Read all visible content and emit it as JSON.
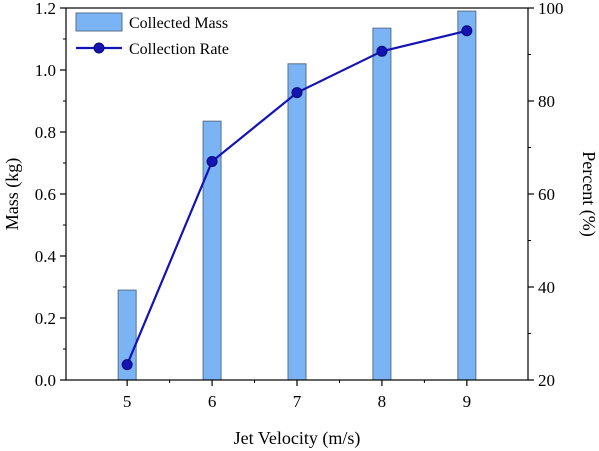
{
  "chart_data": {
    "type": "bar",
    "x": [
      5,
      6,
      7,
      8,
      9
    ],
    "categories": [
      "5",
      "6",
      "7",
      "8",
      "9"
    ],
    "xlabel": "Jet Velocity (m/s)",
    "ylabel": "Mass (kg)",
    "y2label": "Percent (%)",
    "ylim": [
      0,
      1.2
    ],
    "y2lim": [
      20,
      100
    ],
    "yticks": [
      "0.0",
      "0.2",
      "0.4",
      "0.6",
      "0.8",
      "1.0",
      "1.2"
    ],
    "y2ticks": [
      "20",
      "40",
      "60",
      "80",
      "100"
    ],
    "grid": false,
    "legend_position": "top-left",
    "series": [
      {
        "name": "Collected Mass",
        "type": "bar",
        "axis": "left",
        "values": [
          0.29,
          0.835,
          1.02,
          1.135,
          1.19
        ],
        "color": "#7ab4f5",
        "edge_color": "#5a6f8c"
      },
      {
        "name": "Collection Rate",
        "type": "line",
        "axis": "right",
        "values": [
          23.3,
          67.0,
          81.8,
          90.7,
          95.1
        ],
        "color": "#1414b4",
        "marker": "circle"
      }
    ]
  }
}
